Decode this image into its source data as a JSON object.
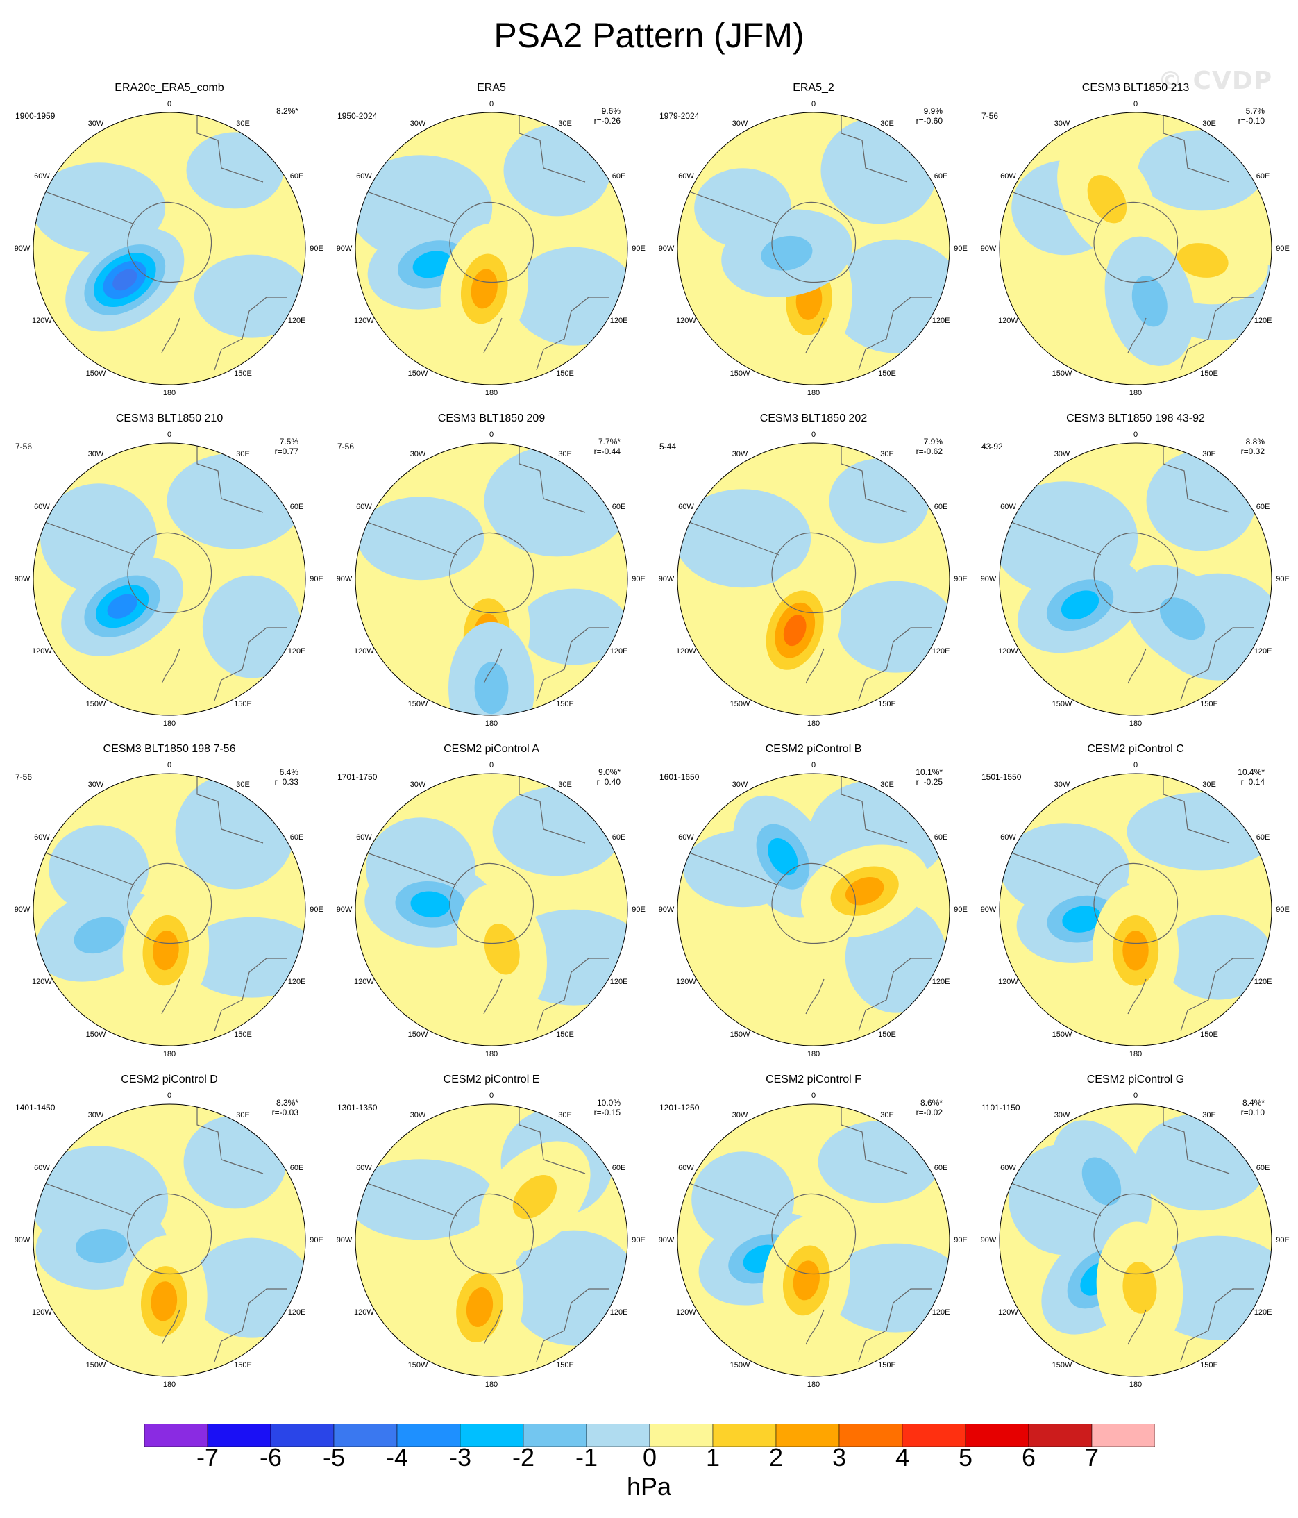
{
  "title": "PSA2 Pattern (JFM)",
  "watermark": "© CVDP",
  "units": "hPa",
  "colorbar": {
    "colors": [
      "#8a2be2",
      "#1a10f5",
      "#2a45e8",
      "#3a78f0",
      "#1e90ff",
      "#00bfff",
      "#73c6f0",
      "#b0dcf0",
      "#fdf796",
      "#fdd22a",
      "#ffa500",
      "#ff7000",
      "#ff3010",
      "#e60000",
      "#cc1c1c",
      "#ffb3b3"
    ],
    "labels": [
      "-7",
      "-6",
      "-5",
      "-4",
      "-3",
      "-2",
      "-1",
      "0",
      "1",
      "2",
      "3",
      "4",
      "5",
      "6",
      "7"
    ]
  },
  "longitude_labels": [
    "0",
    "30E",
    "60E",
    "90E",
    "120E",
    "150E",
    "180",
    "150W",
    "120W",
    "90W",
    "60W",
    "30W"
  ],
  "panels": [
    {
      "title": "ERA20c_ERA5_comb",
      "period": "1900-1959",
      "pct": "8.2%*",
      "r": "",
      "blobs": [
        {
          "a": 235,
          "d": 0.4,
          "v": -5
        }
      ]
    },
    {
      "title": "ERA5",
      "period": "1950-2024",
      "pct": "9.6%",
      "r": "r=-0.26",
      "blobs": [
        {
          "a": 255,
          "d": 0.45,
          "v": -3
        },
        {
          "a": 190,
          "d": 0.3,
          "v": 3
        }
      ]
    },
    {
      "title": "ERA5_2",
      "period": "1979-2024",
      "pct": "9.9%",
      "r": "r=-0.60",
      "blobs": [
        {
          "a": 185,
          "d": 0.38,
          "v": 3
        },
        {
          "a": 260,
          "d": 0.2,
          "v": -2
        }
      ]
    },
    {
      "title": "CESM3 BLT1850 213",
      "period": "7-56",
      "pct": "5.7%",
      "r": "r=-0.10",
      "blobs": [
        {
          "a": 330,
          "d": 0.42,
          "v": 2
        },
        {
          "a": 100,
          "d": 0.5,
          "v": 2
        },
        {
          "a": 165,
          "d": 0.4,
          "v": -2
        }
      ]
    },
    {
      "title": "CESM3 BLT1850 210",
      "period": "7-56",
      "pct": "7.5%",
      "r": "r=0.77",
      "blobs": [
        {
          "a": 240,
          "d": 0.4,
          "v": -4
        }
      ]
    },
    {
      "title": "CESM3 BLT1850 209",
      "period": "7-56",
      "pct": "7.7%*",
      "r": "r=-0.44",
      "blobs": [
        {
          "a": 185,
          "d": 0.4,
          "v": 3
        },
        {
          "a": 180,
          "d": 0.8,
          "v": -2
        }
      ]
    },
    {
      "title": "CESM3 BLT1850 202",
      "period": "5-44",
      "pct": "7.9%",
      "r": "r=-0.62",
      "blobs": [
        {
          "a": 200,
          "d": 0.4,
          "v": 4
        }
      ]
    },
    {
      "title": "CESM3 BLT1850 198 43-92",
      "period": "43-92",
      "pct": "8.8%",
      "r": "r=0.32",
      "blobs": [
        {
          "a": 245,
          "d": 0.45,
          "v": -3
        },
        {
          "a": 130,
          "d": 0.45,
          "v": -2
        }
      ]
    },
    {
      "title": "CESM3 BLT1850 198 7-56",
      "period": "7-56",
      "pct": "6.4%",
      "r": "r=0.33",
      "blobs": [
        {
          "a": 250,
          "d": 0.55,
          "v": -2
        },
        {
          "a": 185,
          "d": 0.3,
          "v": 3
        }
      ]
    },
    {
      "title": "CESM2 piControl A",
      "period": "1701-1750",
      "pct": "9.0%*",
      "r": "r=0.40",
      "blobs": [
        {
          "a": 275,
          "d": 0.45,
          "v": -3
        },
        {
          "a": 165,
          "d": 0.3,
          "v": 2
        }
      ]
    },
    {
      "title": "CESM2 piControl B",
      "period": "1601-1650",
      "pct": "10.1%*",
      "r": "r=-0.25",
      "blobs": [
        {
          "a": 330,
          "d": 0.45,
          "v": -3
        },
        {
          "a": 70,
          "d": 0.4,
          "v": 3
        }
      ]
    },
    {
      "title": "CESM2 piControl C",
      "period": "1501-1550",
      "pct": "10.4%*",
      "r": "r=0.14",
      "blobs": [
        {
          "a": 260,
          "d": 0.4,
          "v": -3
        },
        {
          "a": 180,
          "d": 0.3,
          "v": 3
        }
      ]
    },
    {
      "title": "CESM2 piControl D",
      "period": "1401-1450",
      "pct": "8.3%*",
      "r": "r=-0.03",
      "blobs": [
        {
          "a": 265,
          "d": 0.5,
          "v": -2
        },
        {
          "a": 185,
          "d": 0.45,
          "v": 3
        }
      ]
    },
    {
      "title": "CESM2 piControl E",
      "period": "1301-1350",
      "pct": "10.0%",
      "r": "r=-0.15",
      "blobs": [
        {
          "a": 45,
          "d": 0.45,
          "v": 2
        },
        {
          "a": 190,
          "d": 0.5,
          "v": 3
        }
      ]
    },
    {
      "title": "CESM2 piControl F",
      "period": "1201-1250",
      "pct": "8.6%*",
      "r": "r=-0.02",
      "blobs": [
        {
          "a": 250,
          "d": 0.4,
          "v": -3
        },
        {
          "a": 190,
          "d": 0.3,
          "v": 3
        }
      ]
    },
    {
      "title": "CESM2 piControl G",
      "period": "1101-1150",
      "pct": "8.4%*",
      "r": "r=0.10",
      "blobs": [
        {
          "a": 330,
          "d": 0.5,
          "v": -2
        },
        {
          "a": 225,
          "d": 0.4,
          "v": -3
        },
        {
          "a": 175,
          "d": 0.35,
          "v": 2
        }
      ]
    }
  ]
}
